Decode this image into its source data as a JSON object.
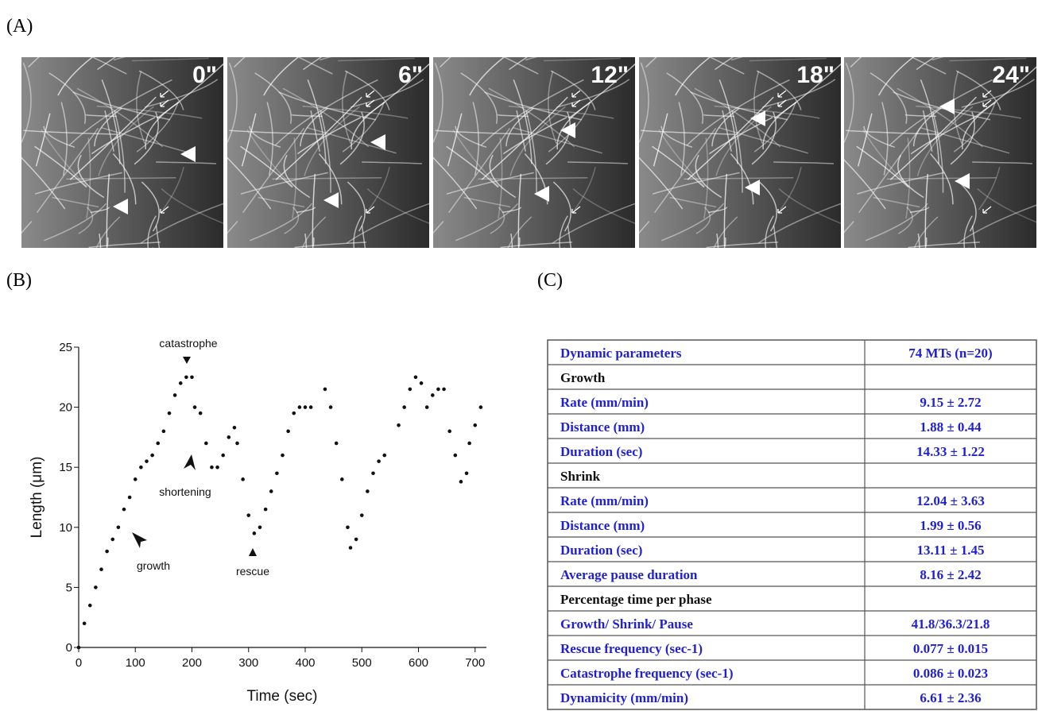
{
  "labels": [
    "(A)",
    "(B)",
    "(C)"
  ],
  "panel_a": {
    "frames": [
      "0\"",
      "6\"",
      "12\"",
      "18\"",
      "24\""
    ]
  },
  "chart_data": {
    "type": "scatter",
    "xlabel": "Time (sec)",
    "ylabel": "Length (μm)",
    "annotations": [
      "catastrophe",
      "shortening",
      "growth",
      "rescue"
    ],
    "x": [
      0,
      10,
      20,
      30,
      40,
      50,
      60,
      70,
      80,
      90,
      100,
      110,
      120,
      130,
      140,
      150,
      160,
      170,
      180,
      190,
      200,
      205,
      215,
      225,
      235,
      245,
      255,
      265,
      275,
      280,
      290,
      300,
      310,
      320,
      330,
      340,
      350,
      360,
      370,
      380,
      390,
      400,
      410,
      435,
      445,
      455,
      465,
      475,
      480,
      490,
      500,
      510,
      520,
      530,
      540,
      565,
      575,
      585,
      595,
      605,
      615,
      625,
      635,
      645,
      655,
      665,
      675,
      685,
      690,
      700,
      710
    ],
    "series": [
      {
        "color": "#111111",
        "values": [
          0,
          2,
          3.5,
          5,
          6.5,
          8,
          9,
          10,
          11.5,
          12.5,
          14,
          15,
          15.5,
          16,
          17,
          18,
          19.5,
          21,
          22,
          22.5,
          22.5,
          20,
          19.5,
          17,
          15,
          15,
          16,
          17.5,
          18.3,
          17,
          14,
          11,
          9.5,
          10,
          11.5,
          13,
          14.5,
          16,
          18,
          19.5,
          20,
          20,
          20,
          21.5,
          20,
          17,
          14,
          10,
          8.3,
          9,
          11,
          13,
          14.5,
          15.5,
          16,
          18.5,
          20,
          21.5,
          22.5,
          22,
          20,
          21,
          21.5,
          21.5,
          18,
          16,
          13.8,
          14.5,
          17,
          18.5,
          20
        ]
      }
    ],
    "xlim": [
      0,
      720
    ],
    "ylim": [
      0,
      25
    ],
    "xticks": [
      0,
      100,
      200,
      300,
      400,
      500,
      600,
      700
    ],
    "yticks": [
      0,
      5,
      10,
      15,
      20,
      25
    ]
  },
  "table": {
    "rows": [
      [
        "Dynamic parameters",
        "74 MTs (n=20)"
      ],
      [
        "Growth"
      ],
      [
        "Rate (mm/min)",
        "9.15 ± 2.72"
      ],
      [
        "Distance (mm)",
        "1.88 ± 0.44"
      ],
      [
        "Duration (sec)",
        "14.33 ± 1.22"
      ],
      [
        "Shrink"
      ],
      [
        "Rate (mm/min)",
        "12.04 ± 3.63"
      ],
      [
        "Distance (mm)",
        "1.99 ± 0.56"
      ],
      [
        "Duration (sec)",
        "13.11 ± 1.45"
      ],
      [
        "Average pause duration",
        "8.16 ± 2.42"
      ],
      [
        "Percentage time per phase"
      ],
      [
        "Growth/ Shrink/ Pause",
        "41.8/36.3/21.8"
      ],
      [
        "Rescue frequency (sec-1)",
        "0.077 ± 0.015"
      ],
      [
        "Catastrophe frequency (sec-1)",
        "0.086 ± 0.023"
      ],
      [
        "Dynamicity (mm/min)",
        "6.61 ± 2.36"
      ]
    ]
  }
}
